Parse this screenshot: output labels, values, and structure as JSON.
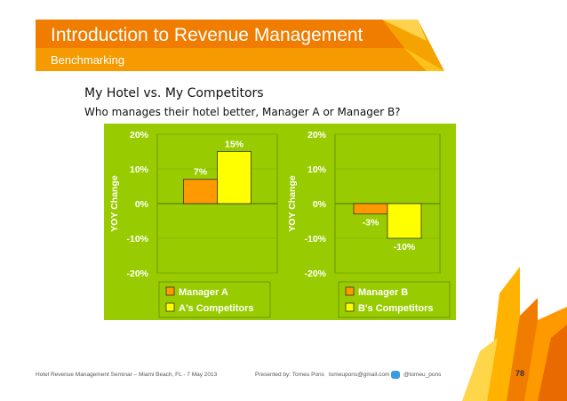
{
  "slide": {
    "title": "Introduction to Revenue Management",
    "subtitle": "Benchmarking",
    "heading": "My Hotel vs. My Competitors",
    "question": "Who manages their hotel better, Manager A or Manager B?"
  },
  "footer": {
    "seminar": "Hotel Revenue Management Seminar  –  Miami Beach, FL  -  7 May 2013",
    "presenter": "Presented by:  Tomeu Pons",
    "email": "tomeupons@gmail.com",
    "twitter_icon": "twitter-bird-icon",
    "twitter": "@tomeu_pons",
    "page_number": "78"
  },
  "colors": {
    "header_orange": "#f08a00",
    "header_yellow": "#ffd200",
    "chart_green": "#99cc00",
    "manager_orange": "#ff9900",
    "competitor_yellow": "#ffff00"
  },
  "chart_data": [
    {
      "type": "bar",
      "ylabel": "YOY Change",
      "ylim": [
        -20,
        20
      ],
      "ticks": [
        "20%",
        "10%",
        "0%",
        "-10%",
        "-20%"
      ],
      "tick_values": [
        20,
        10,
        0,
        -10,
        -20
      ],
      "series": [
        {
          "name": "Manager A",
          "values": [
            7
          ],
          "label": "7%",
          "color": "#ff9900"
        },
        {
          "name": "A's Competitors",
          "values": [
            15
          ],
          "label": "15%",
          "color": "#ffff00"
        }
      ]
    },
    {
      "type": "bar",
      "ylabel": "YOY Change",
      "ylim": [
        -20,
        20
      ],
      "ticks": [
        "20%",
        "10%",
        "0%",
        "-10%",
        "-20%"
      ],
      "tick_values": [
        20,
        10,
        0,
        -10,
        -20
      ],
      "series": [
        {
          "name": "Manager B",
          "values": [
            -3
          ],
          "label": "-3%",
          "color": "#ff9900"
        },
        {
          "name": "B's Competitors",
          "values": [
            -10
          ],
          "label": "-10%",
          "color": "#ffff00"
        }
      ]
    }
  ]
}
